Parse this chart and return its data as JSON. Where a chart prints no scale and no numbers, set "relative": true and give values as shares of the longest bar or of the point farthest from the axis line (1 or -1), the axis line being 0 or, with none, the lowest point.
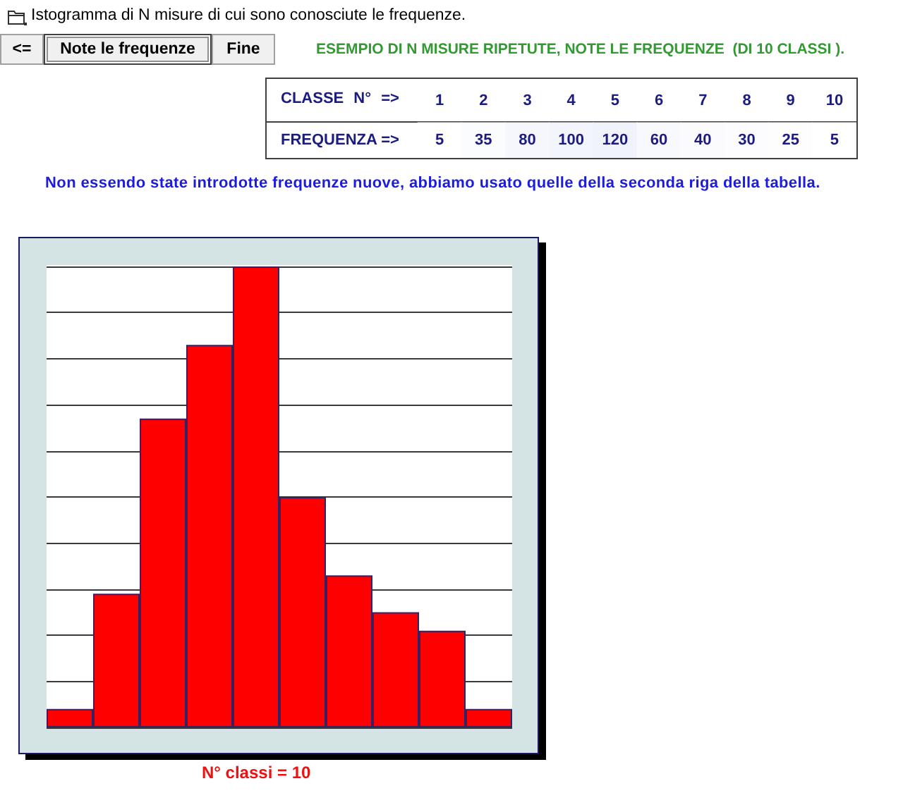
{
  "chart_data": [
    {
      "type": "heatmap",
      "title": "Istogramma di N misure di cui sono conosciute le frequenze.",
      "subtitle": "ESEMPIO DI N MISURE RIPETUTE, NOTE LE FREQUENZE  (DI 10 CLASSI ).",
      "xlabel": "CLASSE N° =>",
      "annotations": [
        "<=",
        "Note le frequenze",
        "Fine",
        "Non essendo state introdotte frequenze nuove, abbiamo usato quelle della seconda riga della tabella."
      ],
      "categories": [
        "1",
        "2",
        "3",
        "4",
        "5",
        "6",
        "7",
        "8",
        "9",
        "10"
      ],
      "y_categories": [
        "FREQUENZA =>"
      ],
      "cells": [
        [
          5,
          35,
          80,
          100,
          120,
          60,
          40,
          30,
          25,
          5
        ]
      ],
      "cell_labels": [
        [
          "5",
          "35",
          "80",
          "100",
          "120",
          "60",
          "40",
          "30",
          "25",
          "5"
        ]
      ]
    },
    {
      "type": "bar",
      "relative": true,
      "xlabel": "N° classi = 10",
      "categories": [
        null,
        null,
        null,
        null,
        null,
        null,
        null,
        null,
        null,
        null
      ],
      "values": [
        0.04,
        0.29,
        0.67,
        0.83,
        1,
        0.5,
        0.33,
        0.25,
        0.21,
        0.04
      ],
      "color": "#ff0000",
      "grid": "y"
    }
  ]
}
